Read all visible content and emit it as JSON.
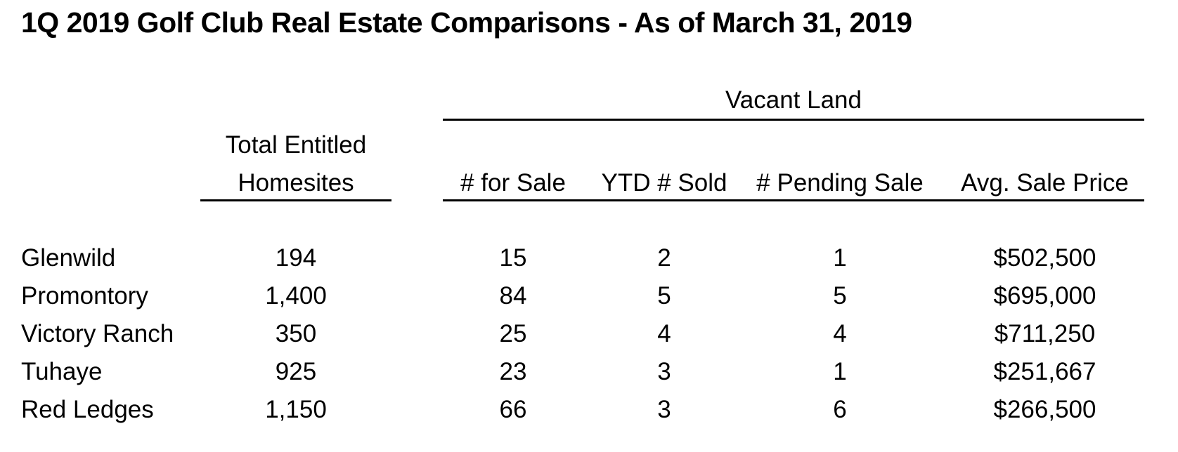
{
  "title": "1Q 2019 Golf Club Real Estate Comparisons - As of March 31, 2019",
  "group_header": "Vacant Land",
  "columns": {
    "homesites_line1": "Total Entitled",
    "homesites_line2": "Homesites",
    "for_sale": "# for Sale",
    "ytd_sold": "YTD # Sold",
    "pending": "# Pending Sale",
    "avg_price": "Avg. Sale Price"
  },
  "rows": [
    {
      "name": "Glenwild",
      "homesites": "194",
      "for_sale": "15",
      "ytd_sold": "2",
      "pending": "1",
      "avg_price": "$502,500"
    },
    {
      "name": "Promontory",
      "homesites": "1,400",
      "for_sale": "84",
      "ytd_sold": "5",
      "pending": "5",
      "avg_price": "$695,000"
    },
    {
      "name": "Victory Ranch",
      "homesites": "350",
      "for_sale": "25",
      "ytd_sold": "4",
      "pending": "4",
      "avg_price": "$711,250"
    },
    {
      "name": "Tuhaye",
      "homesites": "925",
      "for_sale": "23",
      "ytd_sold": "3",
      "pending": "1",
      "avg_price": "$251,667"
    },
    {
      "name": "Red Ledges",
      "homesites": "1,150",
      "for_sale": "66",
      "ytd_sold": "3",
      "pending": "6",
      "avg_price": "$266,500"
    }
  ]
}
